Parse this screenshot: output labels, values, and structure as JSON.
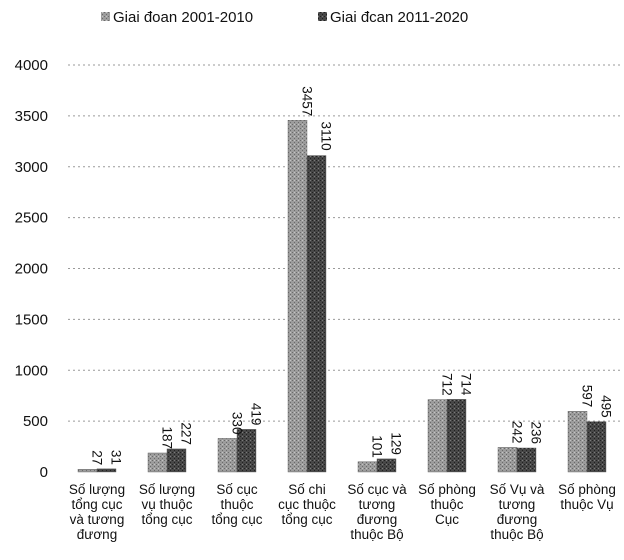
{
  "chart_data": {
    "type": "bar",
    "categories": [
      [
        "Số lượng",
        "tổng cục",
        "và tương",
        "đương"
      ],
      [
        "Số lượng",
        "vụ thuộc",
        "tổng cục"
      ],
      [
        "Số cục",
        "thuộc",
        "tổng cục"
      ],
      [
        "Số chi",
        "cục thuộc",
        "tổng cục"
      ],
      [
        "Số cục và",
        "tương",
        "đương",
        "thuộc Bộ"
      ],
      [
        "Số phòng",
        "thuộc",
        "Cục"
      ],
      [
        "Số Vụ và",
        "tương",
        "đương",
        "thuộc Bộ"
      ],
      [
        "Số phòng",
        "thuộc Vụ"
      ]
    ],
    "series": [
      {
        "name": "Giai đoan 2001-2010",
        "values": [
          27,
          187,
          330,
          3457,
          101,
          712,
          242,
          597
        ],
        "color": "#8f8f8f"
      },
      {
        "name": "Giai đcan 2011-2020",
        "values": [
          31,
          227,
          419,
          3110,
          129,
          714,
          236,
          495
        ],
        "color": "#3d3d3d"
      }
    ],
    "yticks": [
      "0",
      "500",
      "1000",
      "1500",
      "2000",
      "2500",
      "3000",
      "3500",
      "4000"
    ],
    "ylim": [
      0,
      4000
    ],
    "grid": true,
    "legend_position": "top",
    "title": "",
    "xlabel": "",
    "ylabel": ""
  }
}
